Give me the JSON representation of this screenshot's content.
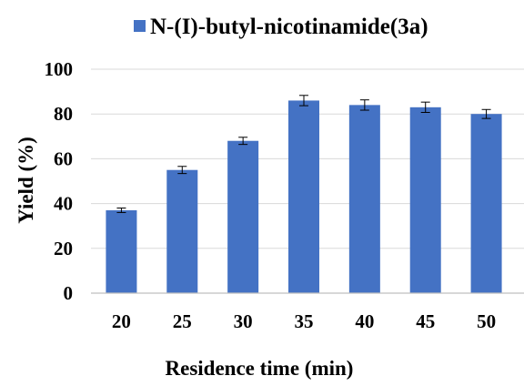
{
  "chart_data": {
    "type": "bar",
    "categories": [
      "20",
      "25",
      "30",
      "35",
      "40",
      "45",
      "50"
    ],
    "series": [
      {
        "name": "N-(I)-butyl-nicotinamide(3a)",
        "values": [
          37,
          55,
          68,
          86,
          84,
          83,
          80
        ],
        "error": [
          1,
          1.6,
          1.6,
          2.3,
          2.3,
          2.3,
          2
        ]
      }
    ],
    "xlabel": "Residence time (min)",
    "ylabel": "Yield (%)",
    "ylim": [
      0,
      100
    ],
    "yticks": [
      0,
      20,
      40,
      60,
      80,
      100
    ],
    "grid": "horizontal",
    "legend_position": "top",
    "colors": {
      "bar": "#4472C4",
      "error_bar": "#000000",
      "grid": "#d9d9d9"
    }
  }
}
